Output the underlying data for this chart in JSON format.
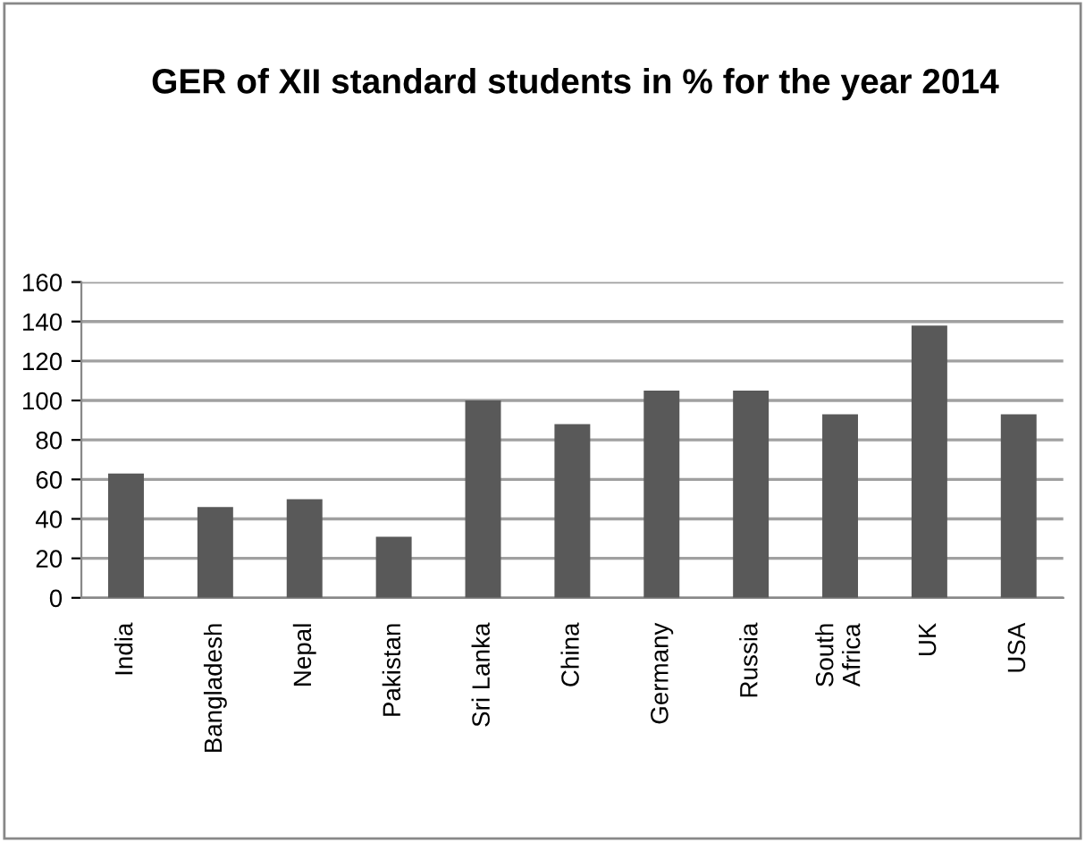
{
  "chart_data": {
    "type": "bar",
    "title": "GER of XII standard students in % for the year 2014",
    "categories": [
      "India",
      "Bangladesh",
      "Nepal",
      "Pakistan",
      "Sri Lanka",
      "China",
      "Germany",
      "Russia",
      "South\nAfrica",
      "UK",
      "USA"
    ],
    "values": [
      63,
      46,
      50,
      31,
      100,
      88,
      105,
      105,
      93,
      138,
      93
    ],
    "color": "#595959",
    "ylim": [
      0,
      160
    ],
    "yticks": [
      0,
      20,
      40,
      60,
      80,
      100,
      120,
      140,
      160
    ],
    "grid": "y"
  }
}
